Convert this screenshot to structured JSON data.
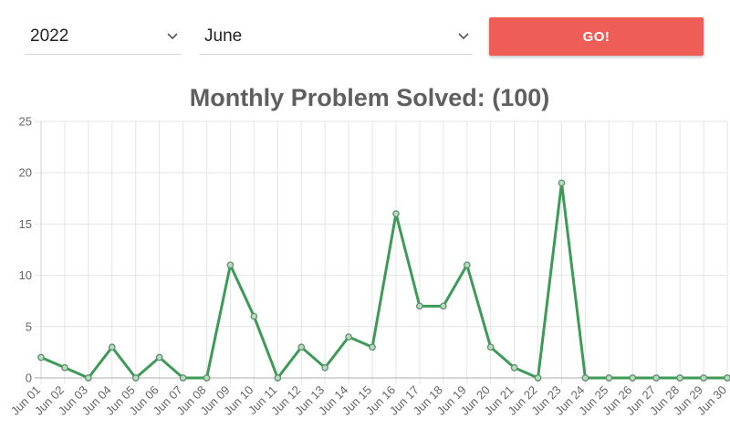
{
  "controls": {
    "year_value": "2022",
    "month_value": "June",
    "go_label": "GO!"
  },
  "colors": {
    "accent": "#ee5e57",
    "line": "#3d9a57",
    "grid": "#e5e5e5"
  },
  "chart_data": {
    "type": "line",
    "title": "Monthly Problem Solved: (100)",
    "xlabel": "",
    "ylabel": "",
    "ylim": [
      0,
      25
    ],
    "yticks": [
      0,
      5,
      10,
      15,
      20,
      25
    ],
    "grid": true,
    "categories": [
      "Jun 01",
      "Jun 02",
      "Jun 03",
      "Jun 04",
      "Jun 05",
      "Jun 06",
      "Jun 07",
      "Jun 08",
      "Jun 09",
      "Jun 10",
      "Jun 11",
      "Jun 12",
      "Jun 13",
      "Jun 14",
      "Jun 15",
      "Jun 16",
      "Jun 17",
      "Jun 18",
      "Jun 19",
      "Jun 20",
      "Jun 21",
      "Jun 22",
      "Jun 23",
      "Jun 24",
      "Jun 25",
      "Jun 26",
      "Jun 27",
      "Jun 28",
      "Jun 29",
      "Jun 30"
    ],
    "series": [
      {
        "values": [
          2,
          1,
          0,
          3,
          0,
          2,
          0,
          0,
          11,
          6,
          0,
          3,
          1,
          4,
          3,
          16,
          7,
          7,
          11,
          3,
          1,
          0,
          19,
          0,
          0,
          0,
          0,
          0,
          0,
          0
        ]
      }
    ]
  }
}
